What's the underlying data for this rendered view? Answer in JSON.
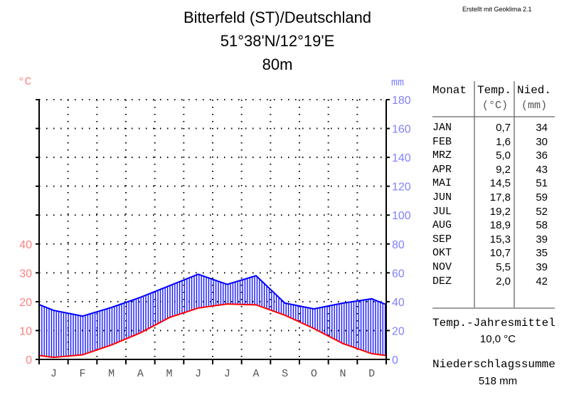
{
  "credit": "Erstellt mit Geoklima 2.1",
  "chart_data": {
    "type": "line",
    "title": "Bitterfeld (ST)/Deutschland",
    "subtitle": "51°38'N/12°19'E",
    "elevation": "80m",
    "ylabel_left": "°C",
    "ylabel_right": "mm",
    "categories": [
      "J",
      "F",
      "M",
      "A",
      "M",
      "J",
      "J",
      "A",
      "S",
      "O",
      "N",
      "D"
    ],
    "yticks_left": [
      0,
      10,
      20,
      30,
      40
    ],
    "yticks_right": [
      0,
      20,
      40,
      60,
      80,
      100,
      120,
      140,
      160,
      180
    ],
    "ylim_left": [
      0,
      90
    ],
    "ylim_right": [
      0,
      180
    ],
    "grid": true,
    "series": [
      {
        "name": "Temp.",
        "unit": "°C",
        "color": "#ff0000",
        "values": [
          0.7,
          1.6,
          5.0,
          9.2,
          14.5,
          17.8,
          19.2,
          18.9,
          15.3,
          10.7,
          5.5,
          2.0
        ]
      },
      {
        "name": "Nied.",
        "unit": "mm",
        "color": "#0000ff",
        "values": [
          34,
          30,
          36,
          43,
          51,
          59,
          52,
          58,
          39,
          35,
          39,
          42
        ]
      }
    ]
  },
  "table": {
    "headers": [
      "Monat",
      "Temp.",
      "Nied."
    ],
    "units": [
      "(°C)",
      "(mm)"
    ],
    "months": [
      "JAN",
      "FEB",
      "MRZ",
      "APR",
      "MAI",
      "JUN",
      "JUL",
      "AUG",
      "SEP",
      "OKT",
      "NOV",
      "DEZ"
    ],
    "temps": [
      "0,7",
      "1,6",
      "5,0",
      "9,2",
      "14,5",
      "17,8",
      "19,2",
      "18,9",
      "15,3",
      "10,7",
      "5,5",
      "2,0"
    ],
    "precip": [
      "34",
      "30",
      "36",
      "43",
      "51",
      "59",
      "52",
      "58",
      "39",
      "35",
      "39",
      "42"
    ]
  },
  "summary": {
    "mean_label": "Temp.-Jahresmittel",
    "mean_value": "10,0 °C",
    "sum_label": "Niederschlagssumme",
    "sum_value": "518 mm"
  },
  "colors": {
    "temp_axis": "#ff8080",
    "precip_axis": "#8080ff"
  }
}
